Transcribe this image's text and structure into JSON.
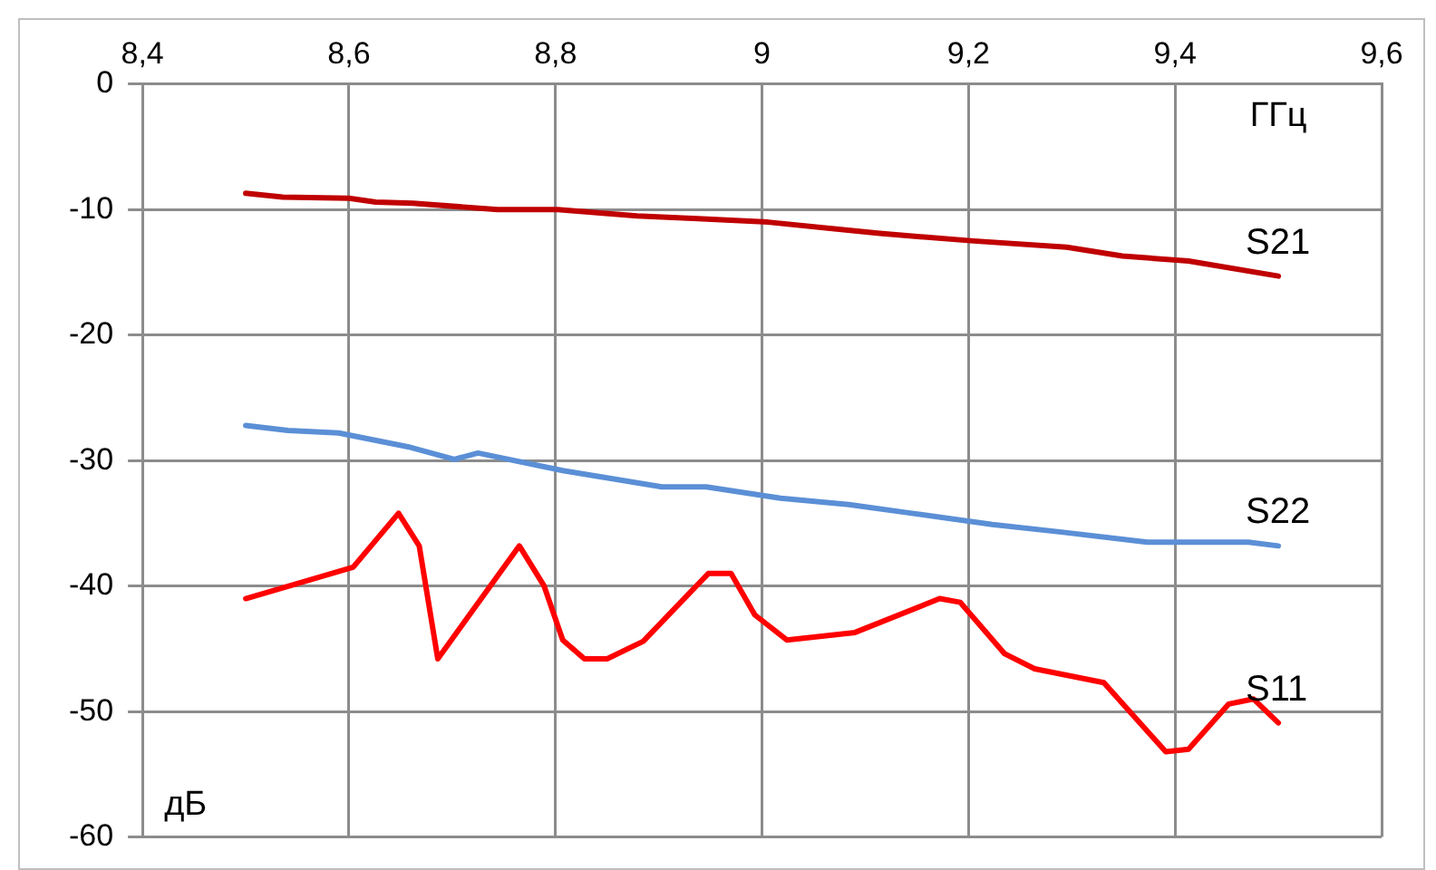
{
  "chart_data": {
    "type": "line",
    "xlabel": "ГГц",
    "ylabel": "дБ",
    "xlim": [
      8.4,
      9.6
    ],
    "xticks": [
      {
        "value": 8.4,
        "label": "8,4"
      },
      {
        "value": 8.6,
        "label": "8,6"
      },
      {
        "value": 8.8,
        "label": "8,8"
      },
      9,
      {
        "value": 9.2,
        "label": "9,2"
      },
      {
        "value": 9.4,
        "label": "9,4"
      },
      {
        "value": 9.6,
        "label": "9,6"
      }
    ],
    "ylim": [
      -60,
      0
    ],
    "yticks": [
      -60,
      -50,
      -40,
      -30,
      -20,
      -10,
      0
    ],
    "grid": true,
    "legend": false,
    "marker": "none",
    "line_style": "solid",
    "series": [
      {
        "name": "S21",
        "color": "#c00000",
        "x": [
          8.5,
          8.536,
          8.6,
          8.626,
          8.662,
          8.744,
          8.802,
          8.879,
          8.933,
          9.006,
          9.114,
          9.205,
          9.295,
          9.349,
          9.413,
          9.5
        ],
        "values": [
          -8.7,
          -9.0,
          -9.1,
          -9.4,
          -9.5,
          -10.0,
          -10.0,
          -10.5,
          -10.7,
          -11.0,
          -11.9,
          -12.5,
          -13.0,
          -13.7,
          -14.1,
          -15.3
        ]
      },
      {
        "name": "S22",
        "color": "#5b8fd6",
        "x": [
          8.5,
          8.541,
          8.59,
          8.657,
          8.702,
          8.725,
          8.807,
          8.903,
          8.946,
          9.018,
          9.084,
          9.145,
          9.223,
          9.29,
          9.373,
          9.471,
          9.5
        ],
        "values": [
          -27.2,
          -27.6,
          -27.8,
          -28.9,
          -29.9,
          -29.4,
          -30.8,
          -32.1,
          -32.1,
          -33.0,
          -33.5,
          -34.2,
          -35.1,
          -35.7,
          -36.5,
          -36.5,
          -36.8
        ]
      },
      {
        "name": "S11",
        "color": "#ff0000",
        "x": [
          8.5,
          8.604,
          8.648,
          8.668,
          8.686,
          8.765,
          8.789,
          8.807,
          8.828,
          8.85,
          8.885,
          8.948,
          8.97,
          8.993,
          9.024,
          9.09,
          9.172,
          9.192,
          9.235,
          9.264,
          9.331,
          9.391,
          9.413,
          9.452,
          9.476,
          9.5
        ],
        "values": [
          -41.0,
          -38.5,
          -34.2,
          -36.8,
          -45.8,
          -36.8,
          -40.0,
          -44.3,
          -45.8,
          -45.8,
          -44.4,
          -39.0,
          -39.0,
          -42.3,
          -44.3,
          -43.7,
          -41.0,
          -41.3,
          -45.4,
          -46.6,
          -47.7,
          -53.2,
          -53.0,
          -49.4,
          -49.0,
          -50.9
        ]
      }
    ]
  }
}
